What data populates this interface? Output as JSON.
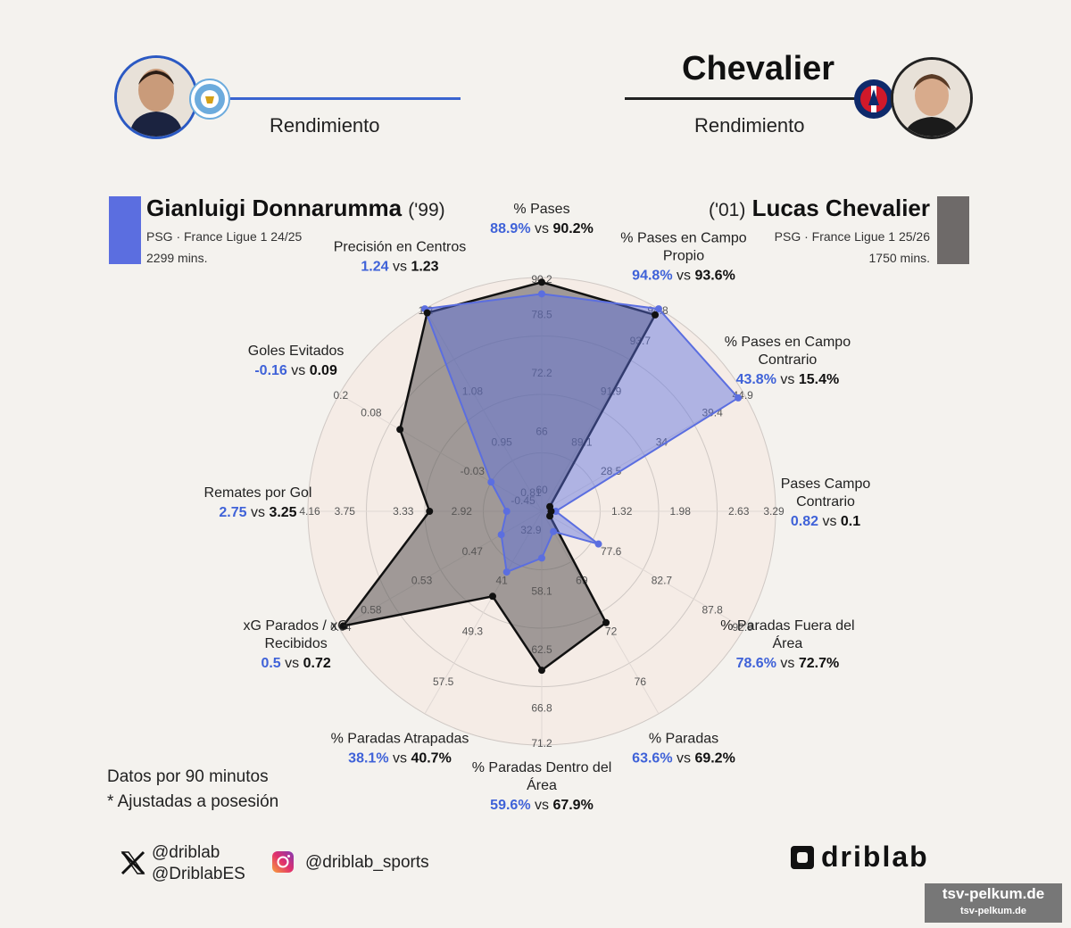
{
  "header": {
    "right_title": "Chevalier",
    "left_subtitle": "Rendimiento",
    "right_subtitle": "Rendimiento"
  },
  "players": {
    "left": {
      "name": "Gianluigi Donnarumma",
      "year": "('99)",
      "team_league": "PSG · France Ligue 1 24/25",
      "minutes": "2299 mins.",
      "color": "#5b6ee0"
    },
    "right": {
      "name": "Lucas Chevalier",
      "year": "('01)",
      "team_league": "PSG · France Ligue 1 25/26",
      "minutes": "1750 mins.",
      "color": "#6e6a69"
    }
  },
  "notes": {
    "line1": "Datos por 90 minutos",
    "line2": "* Ajustadas a posesión"
  },
  "social": {
    "x_handle1": "@driblab",
    "x_handle2": "@DriblabES",
    "instagram": "@driblab_sports",
    "brand": "driblab"
  },
  "watermark": {
    "line1": "tsv-pelkum.de",
    "line2": "tsv-pelkum.de"
  },
  "chart_data": {
    "type": "radar",
    "series": [
      {
        "name": "Gianluigi Donnarumma",
        "color": "#5b6ee0"
      },
      {
        "name": "Lucas Chevalier",
        "color": "#6e6a69"
      }
    ],
    "vs": "vs",
    "axes": [
      {
        "label": [
          "% Pases"
        ],
        "left": "88.9%",
        "right": "90.2%",
        "ticks": [
          "60",
          "66",
          "72.2",
          "78.5",
          "90.2"
        ],
        "a": 0.93,
        "b": 0.98
      },
      {
        "label": [
          "% Pases en Campo",
          "Propio"
        ],
        "left": "94.8%",
        "right": "93.6%",
        "ticks": [
          "",
          "89.1",
          "91.9",
          "93.7",
          "94.8"
        ],
        "a": 1.0,
        "b": 0.97
      },
      {
        "label": [
          "% Pases en Campo",
          "Contrario"
        ],
        "left": "43.8%",
        "right": "15.4%",
        "ticks": [
          "",
          "28.5",
          "34",
          "39.4",
          "44.9"
        ],
        "a": 0.97,
        "b": 0.03
      },
      {
        "label": [
          "Pases Campo",
          "Contrario"
        ],
        "left": "0.82",
        "right": "0.1",
        "ticks": [
          "",
          "1.32",
          "1.98",
          "2.63",
          "3.29"
        ],
        "a": 0.06,
        "b": 0.0
      },
      {
        "label": [
          "% Paradas Fuera del",
          "Área"
        ],
        "left": "78.6%",
        "right": "72.7%",
        "ticks": [
          "",
          "77.6",
          "82.7",
          "87.8",
          "92.9"
        ],
        "a": 0.28,
        "b": 0.03
      },
      {
        "label": [
          "% Paradas"
        ],
        "left": "63.6%",
        "right": "69.2%",
        "ticks": [
          "",
          "69",
          "72",
          "76",
          ""
        ],
        "a": 0.1,
        "b": 0.55
      },
      {
        "label": [
          "% Paradas Dentro del",
          "Área"
        ],
        "left": "59.6%",
        "right": "67.9%",
        "ticks": [
          "",
          "58.1",
          "62.5",
          "66.8",
          "71.2"
        ],
        "a": 0.2,
        "b": 0.68
      },
      {
        "label": [
          "% Paradas Atrapadas"
        ],
        "left": "38.1%",
        "right": "40.7%",
        "ticks": [
          "32.9",
          "41",
          "49.3",
          "57.5",
          ""
        ],
        "a": 0.3,
        "b": 0.42
      },
      {
        "label": [
          "xG Parados / xG",
          "Recibidos"
        ],
        "left": "0.5",
        "right": "0.72",
        "ticks": [
          "",
          "0.47",
          "0.53",
          "0.58",
          "0.64"
        ],
        "a": 0.2,
        "b": 0.98
      },
      {
        "label": [
          "Remates por Gol"
        ],
        "left": "2.75",
        "right": "3.25",
        "ticks": [
          "",
          "2.92",
          "3.33",
          "3.75",
          "4.16"
        ],
        "a": 0.15,
        "b": 0.48
      },
      {
        "label": [
          "Goles Evitados"
        ],
        "left": "-0.16",
        "right": "0.09",
        "ticks": [
          "-0.45",
          "-0.03",
          "",
          "0.08",
          "0.2"
        ],
        "a": 0.25,
        "b": 0.7
      },
      {
        "label": [
          "Precisión en Centros"
        ],
        "left": "1.24",
        "right": "1.23",
        "ticks": [
          "0.81",
          "0.95",
          "1.08",
          "",
          "1.2"
        ],
        "a": 1.0,
        "b": 0.98
      }
    ]
  }
}
